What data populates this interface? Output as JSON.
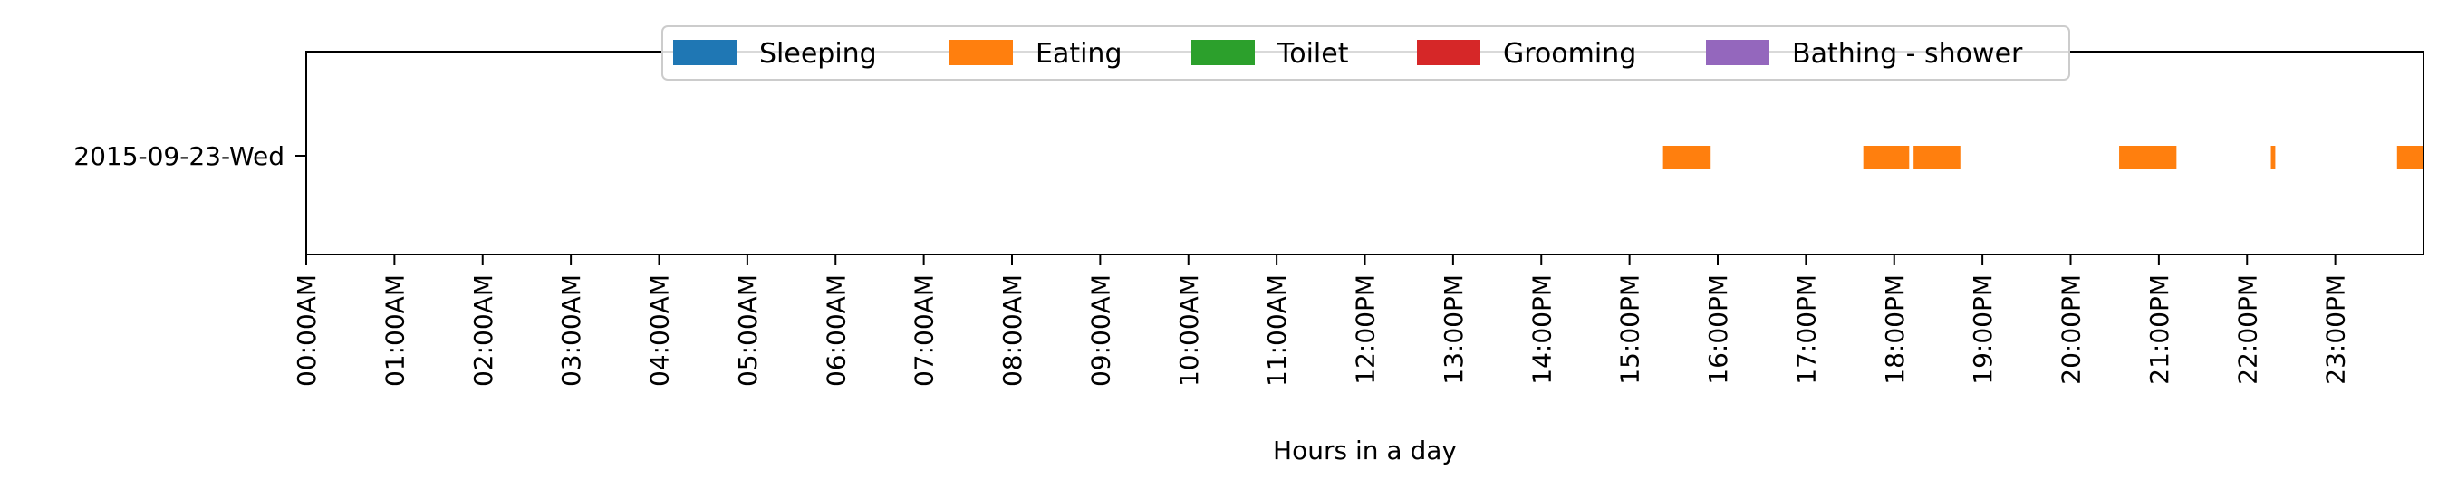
{
  "chart_data": {
    "type": "broken_barh",
    "title": "",
    "xlabel": "Hours in a day",
    "ylabel": "",
    "xlim": [
      0,
      24
    ],
    "grid": false,
    "legend_placement": "top-center",
    "y_categories": [
      "2015-09-23-Wed"
    ],
    "x_ticks": [
      0,
      1,
      2,
      3,
      4,
      5,
      6,
      7,
      8,
      9,
      10,
      11,
      12,
      13,
      14,
      15,
      16,
      17,
      18,
      19,
      20,
      21,
      22,
      23
    ],
    "x_tick_labels": [
      "00:00AM",
      "01:00AM",
      "02:00AM",
      "03:00AM",
      "04:00AM",
      "05:00AM",
      "06:00AM",
      "07:00AM",
      "08:00AM",
      "09:00AM",
      "10:00AM",
      "11:00AM",
      "12:00PM",
      "13:00PM",
      "14:00PM",
      "15:00PM",
      "16:00PM",
      "17:00PM",
      "18:00PM",
      "19:00PM",
      "20:00PM",
      "21:00PM",
      "22:00PM",
      "23:00PM"
    ],
    "series": [
      {
        "name": "Sleeping",
        "color": "#1f77b4",
        "intervals": []
      },
      {
        "name": "Eating",
        "color": "#ff7f0e",
        "intervals": [
          {
            "day": "2015-09-23-Wed",
            "start": 15.38,
            "end": 15.92
          },
          {
            "day": "2015-09-23-Wed",
            "start": 17.65,
            "end": 18.17
          },
          {
            "day": "2015-09-23-Wed",
            "start": 18.22,
            "end": 18.75
          },
          {
            "day": "2015-09-23-Wed",
            "start": 20.55,
            "end": 21.2
          },
          {
            "day": "2015-09-23-Wed",
            "start": 22.27,
            "end": 22.32
          },
          {
            "day": "2015-09-23-Wed",
            "start": 23.7,
            "end": 24.0
          }
        ]
      },
      {
        "name": "Toilet",
        "color": "#2ca02c",
        "intervals": []
      },
      {
        "name": "Grooming",
        "color": "#d62728",
        "intervals": []
      },
      {
        "name": "Bathing - shower",
        "color": "#9467bd",
        "intervals": []
      }
    ]
  }
}
